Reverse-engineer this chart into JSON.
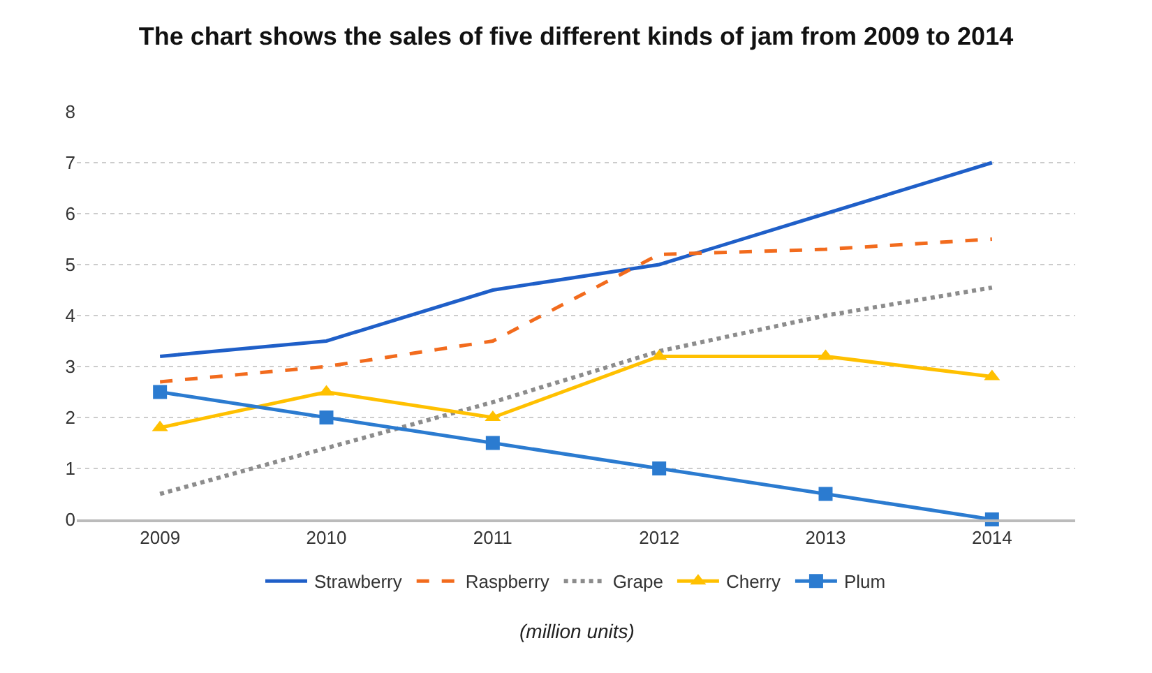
{
  "chart_data": {
    "type": "line",
    "title": "The chart shows the sales of five different kinds of jam from 2009 to 2014",
    "categories": [
      "2009",
      "2010",
      "2011",
      "2012",
      "2013",
      "2014"
    ],
    "series": [
      {
        "name": "Strawberry",
        "color": "#1f5fc8",
        "line_style": "solid",
        "marker": "none",
        "values": [
          3.2,
          3.5,
          4.5,
          5,
          6,
          7
        ]
      },
      {
        "name": "Raspberry",
        "color": "#f26b1d",
        "line_style": "dashed",
        "marker": "none",
        "values": [
          2.7,
          3,
          3.5,
          5.2,
          5.3,
          5.5
        ]
      },
      {
        "name": "Grape",
        "color": "#8c8c8c",
        "line_style": "dotted",
        "marker": "none",
        "values": [
          0.5,
          1.4,
          2.3,
          3.3,
          4,
          4.55
        ]
      },
      {
        "name": "Cherry",
        "color": "#ffc000",
        "line_style": "solid",
        "marker": "triangle",
        "values": [
          1.8,
          2.5,
          2,
          3.2,
          3.2,
          2.8
        ]
      },
      {
        "name": "Plum",
        "color": "#2b7bd0",
        "line_style": "solid",
        "marker": "square",
        "values": [
          2.5,
          2,
          1.5,
          1,
          0.5,
          0
        ]
      }
    ],
    "ylim": [
      0,
      8
    ],
    "yticks": [
      0,
      1,
      2,
      3,
      4,
      5,
      6,
      7,
      8
    ],
    "grid": "y",
    "legend": "bottom",
    "annotations": [
      "(million units)"
    ]
  }
}
